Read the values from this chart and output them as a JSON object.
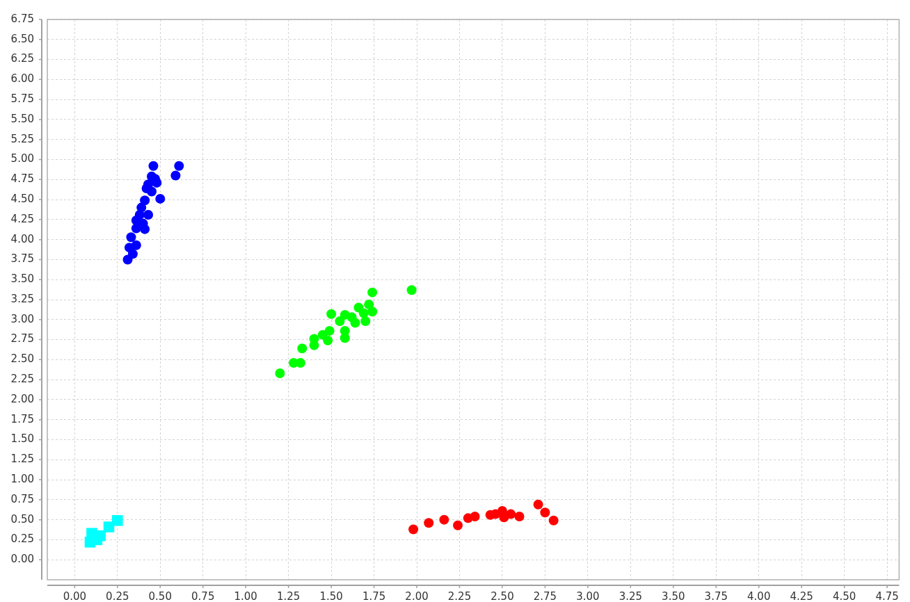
{
  "chart_data": {
    "type": "scatter",
    "grid": true,
    "xlim": [
      -0.16,
      4.82
    ],
    "ylim": [
      -0.25,
      6.75
    ],
    "xticks": [
      {
        "value": 0,
        "label": "0.00"
      },
      {
        "value": 0.25,
        "label": "0.25"
      },
      {
        "value": 0.5,
        "label": "0.50"
      },
      {
        "value": 0.75,
        "label": "0.75"
      },
      {
        "value": 1,
        "label": "1.00"
      },
      {
        "value": 1.25,
        "label": "1.25"
      },
      {
        "value": 1.5,
        "label": "1.50"
      },
      {
        "value": 1.75,
        "label": "1.75"
      },
      {
        "value": 2,
        "label": "2.00"
      },
      {
        "value": 2.25,
        "label": "2.25"
      },
      {
        "value": 2.5,
        "label": "2.50"
      },
      {
        "value": 2.75,
        "label": "2.75"
      },
      {
        "value": 3,
        "label": "3.00"
      },
      {
        "value": 3.25,
        "label": "3.25"
      },
      {
        "value": 3.5,
        "label": "3.50"
      },
      {
        "value": 3.75,
        "label": "3.75"
      },
      {
        "value": 4,
        "label": "4.00"
      },
      {
        "value": 4.25,
        "label": "4.25"
      },
      {
        "value": 4.5,
        "label": "4.50"
      },
      {
        "value": 4.75,
        "label": "4.75"
      }
    ],
    "yticks": [
      {
        "value": 0,
        "label": "0.00"
      },
      {
        "value": 0.25,
        "label": "0.25"
      },
      {
        "value": 0.5,
        "label": "0.50"
      },
      {
        "value": 0.75,
        "label": "0.75"
      },
      {
        "value": 1,
        "label": "1.00"
      },
      {
        "value": 1.25,
        "label": "1.25"
      },
      {
        "value": 1.5,
        "label": "1.50"
      },
      {
        "value": 1.75,
        "label": "1.75"
      },
      {
        "value": 2,
        "label": "2.00"
      },
      {
        "value": 2.25,
        "label": "2.25"
      },
      {
        "value": 2.5,
        "label": "2.50"
      },
      {
        "value": 2.75,
        "label": "2.75"
      },
      {
        "value": 3,
        "label": "3.00"
      },
      {
        "value": 3.25,
        "label": "3.25"
      },
      {
        "value": 3.5,
        "label": "3.50"
      },
      {
        "value": 3.75,
        "label": "3.75"
      },
      {
        "value": 4,
        "label": "4.00"
      },
      {
        "value": 4.25,
        "label": "4.25"
      },
      {
        "value": 4.5,
        "label": "4.50"
      },
      {
        "value": 4.75,
        "label": "4.75"
      },
      {
        "value": 5,
        "label": "5.00"
      },
      {
        "value": 5.25,
        "label": "5.25"
      },
      {
        "value": 5.5,
        "label": "5.50"
      },
      {
        "value": 5.75,
        "label": "5.75"
      },
      {
        "value": 6,
        "label": "6.00"
      },
      {
        "value": 6.25,
        "label": "6.25"
      },
      {
        "value": 6.5,
        "label": "6.50"
      },
      {
        "value": 6.75,
        "label": "6.75"
      }
    ],
    "series": [
      {
        "color": "#0000ff",
        "marker": "circle",
        "x": [
          0.46,
          0.61,
          0.59,
          0.5,
          0.45,
          0.47,
          0.48,
          0.43,
          0.42,
          0.45,
          0.41,
          0.39,
          0.43,
          0.38,
          0.36,
          0.4,
          0.41,
          0.36,
          0.33,
          0.36,
          0.32,
          0.34,
          0.31
        ],
        "values": [
          4.92,
          4.92,
          4.8,
          4.51,
          4.79,
          4.76,
          4.71,
          4.69,
          4.64,
          4.6,
          4.49,
          4.4,
          4.31,
          4.31,
          4.24,
          4.2,
          4.13,
          4.14,
          4.03,
          3.93,
          3.9,
          3.82,
          3.75
        ]
      },
      {
        "color": "#00ff00",
        "marker": "circle",
        "x": [
          1.97,
          1.74,
          1.5,
          1.58,
          1.66,
          1.72,
          1.74,
          1.55,
          1.64,
          1.7,
          1.62,
          1.69,
          1.58,
          1.58,
          1.49,
          1.45,
          1.48,
          1.4,
          1.4,
          1.33,
          1.28,
          1.32,
          1.2
        ],
        "values": [
          3.37,
          3.34,
          3.07,
          3.06,
          3.15,
          3.19,
          3.1,
          2.98,
          2.96,
          2.98,
          3.03,
          3.08,
          2.86,
          2.77,
          2.86,
          2.81,
          2.74,
          2.76,
          2.68,
          2.64,
          2.46,
          2.46,
          2.33
        ]
      },
      {
        "color": "#ff0000",
        "marker": "circle",
        "x": [
          1.98,
          2.07,
          2.16,
          2.24,
          2.3,
          2.34,
          2.43,
          2.46,
          2.5,
          2.51,
          2.55,
          2.6,
          2.71,
          2.75,
          2.8
        ],
        "values": [
          0.38,
          0.46,
          0.5,
          0.43,
          0.52,
          0.54,
          0.56,
          0.57,
          0.61,
          0.53,
          0.57,
          0.54,
          0.69,
          0.59,
          0.49
        ]
      },
      {
        "color": "#00ffff",
        "marker": "square",
        "x": [
          0.09,
          0.1,
          0.13,
          0.15,
          0.2,
          0.25
        ],
        "values": [
          0.22,
          0.33,
          0.25,
          0.3,
          0.41,
          0.49
        ]
      }
    ]
  }
}
